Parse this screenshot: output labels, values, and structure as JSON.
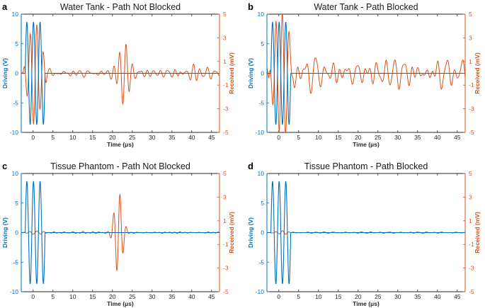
{
  "colors": {
    "driving": "#0072BD",
    "received": "#D95319",
    "axis": "#262626"
  },
  "chart_data": [
    {
      "letter": "a",
      "type": "line",
      "title": "Water Tank - Path Not Blocked",
      "xlabel": "Time (μs)",
      "ylabel_left": "Driving (V)",
      "ylabel_right": "Received (mV)",
      "xlim": [
        -3,
        47
      ],
      "ylim_left": [
        -10,
        10
      ],
      "ylim_right": [
        -5,
        5
      ],
      "xticks": [
        "0",
        "5",
        "10",
        "15",
        "20",
        "25",
        "30",
        "35",
        "40",
        "45"
      ],
      "yticks_left": [
        "10",
        "5",
        "0",
        "-5",
        "-10"
      ],
      "yticks_right": [
        "5",
        "3",
        "1",
        "-1",
        "-3",
        "-5"
      ],
      "driving": {
        "burst_start": -2,
        "cycles": 3,
        "period": 1.667,
        "amplitude": 8.7
      },
      "received": {
        "profile": "echo",
        "seed": 1,
        "noise": 0.35,
        "early": 4.2,
        "echo_amp": 2.6,
        "echo_center": 23,
        "echo_width": 2.0,
        "late": [
          0.6,
          0.4
        ]
      }
    },
    {
      "letter": "b",
      "type": "line",
      "title": "Water Tank - Path Blocked",
      "xlabel": "Time (μs)",
      "ylabel_left": "Driving (V)",
      "ylabel_right": "Received (mV)",
      "xlim": [
        -3,
        47
      ],
      "ylim_left": [
        -10,
        10
      ],
      "ylim_right": [
        -5,
        5
      ],
      "xticks": [
        "0",
        "5",
        "10",
        "15",
        "20",
        "25",
        "30",
        "35",
        "40",
        "45"
      ],
      "yticks_left": [
        "10",
        "5",
        "0",
        "-5",
        "-10"
      ],
      "yticks_right": [
        "5",
        "3",
        "1",
        "-1",
        "-3",
        "-5"
      ],
      "driving": {
        "burst_start": -2,
        "cycles": 3,
        "period": 1.667,
        "amplitude": 8.7
      },
      "received": {
        "profile": "noisy",
        "seed": 2,
        "noise": 1.25,
        "early": 5.3,
        "echo_amp": 0,
        "echo_center": 23,
        "echo_width": 2.0,
        "late": [
          0.3,
          0.2
        ]
      }
    },
    {
      "letter": "c",
      "type": "line",
      "title": "Tissue Phantom - Path Not Blocked",
      "xlabel": "Time (μs)",
      "ylabel_left": "Driving (V)",
      "ylabel_right": "Received (mV)",
      "xlim": [
        -3,
        47
      ],
      "ylim_left": [
        -10,
        10
      ],
      "ylim_right": [
        -5,
        5
      ],
      "xticks": [
        "0",
        "5",
        "10",
        "15",
        "20",
        "25",
        "30",
        "35",
        "40",
        "45"
      ],
      "yticks_left": [
        "10",
        "5",
        "0",
        "-5",
        "-10"
      ],
      "yticks_right": [
        "5",
        "3",
        "1",
        "-1",
        "-3",
        "-5"
      ],
      "driving": {
        "burst_start": -2,
        "cycles": 3,
        "period": 1.667,
        "amplitude": 8.7
      },
      "received": {
        "profile": "echo",
        "seed": 3,
        "noise": 0.07,
        "early": 0.15,
        "echo_amp": 3.4,
        "echo_center": 21.5,
        "echo_width": 1.4,
        "late": [
          0,
          0
        ]
      }
    },
    {
      "letter": "d",
      "type": "line",
      "title": "Tissue Phantom - Path Blocked",
      "xlabel": "Time (μs)",
      "ylabel_left": "Driving (V)",
      "ylabel_right": "Received (mV)",
      "xlim": [
        -3,
        47
      ],
      "ylim_left": [
        -10,
        10
      ],
      "ylim_right": [
        -5,
        5
      ],
      "xticks": [
        "0",
        "5",
        "10",
        "15",
        "20",
        "25",
        "30",
        "35",
        "40",
        "45"
      ],
      "yticks_left": [
        "10",
        "5",
        "0",
        "-5",
        "-10"
      ],
      "yticks_right": [
        "5",
        "3",
        "1",
        "-1",
        "-3",
        "-5"
      ],
      "driving": {
        "burst_start": -2,
        "cycles": 3,
        "period": 1.667,
        "amplitude": 8.7
      },
      "received": {
        "profile": "flat",
        "seed": 4,
        "noise": 0.07,
        "early": 0.12,
        "echo_amp": 0,
        "echo_center": 23,
        "echo_width": 2.0,
        "late": [
          0,
          0
        ]
      }
    }
  ]
}
